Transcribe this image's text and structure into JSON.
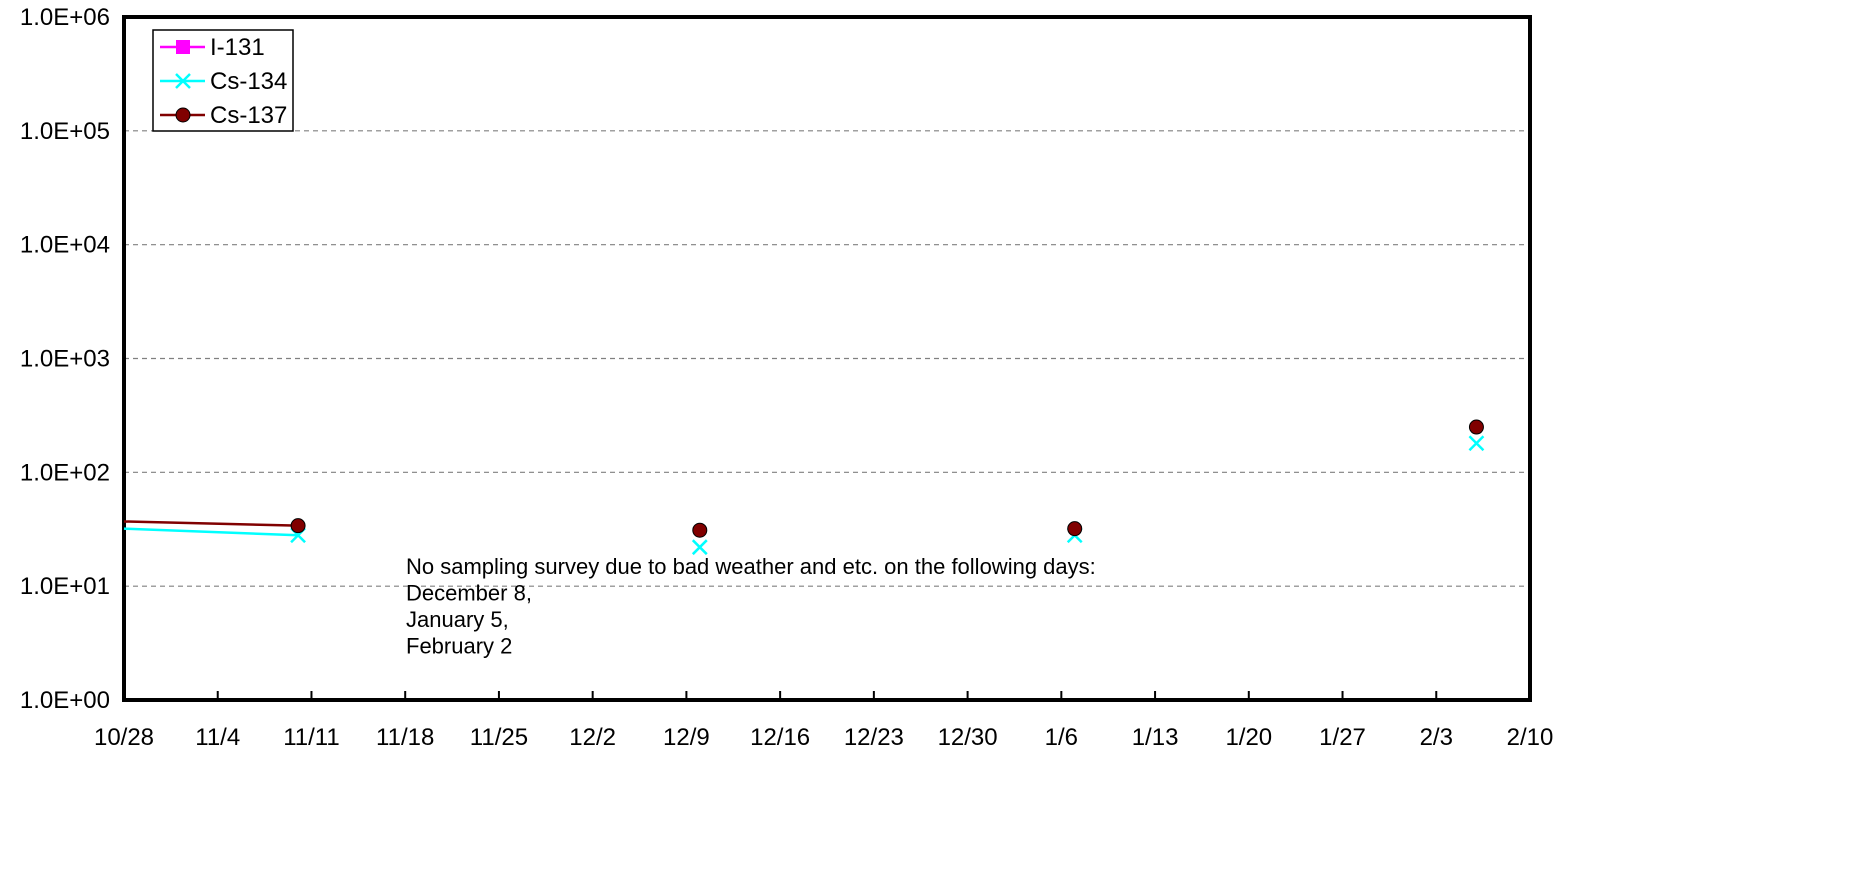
{
  "chart_data": {
    "type": "line",
    "title": "",
    "xlabel": "",
    "ylabel": "",
    "y_scale": "log",
    "ylim": [
      1,
      1000000
    ],
    "xlim": [
      "10/28",
      "2/10"
    ],
    "grid": "horizontal dashed",
    "legend_position": "top-left",
    "x_tick_labels": [
      "10/28",
      "11/4",
      "11/11",
      "11/18",
      "11/25",
      "12/2",
      "12/9",
      "12/16",
      "12/23",
      "12/30",
      "1/6",
      "1/13",
      "1/20",
      "1/27",
      "2/3",
      "2/10"
    ],
    "y_tick_labels": [
      "1.0E+00",
      "1.0E+01",
      "1.0E+02",
      "1.0E+03",
      "1.0E+04",
      "1.0E+05",
      "1.0E+06"
    ],
    "series": [
      {
        "name": "I-131",
        "color": "#ff00ff",
        "marker": "square",
        "points": []
      },
      {
        "name": "Cs-134",
        "color": "#00ffff",
        "marker": "x",
        "points": [
          {
            "x": "10/28",
            "y": 32,
            "marker": false
          },
          {
            "x": "11/10",
            "y": 28,
            "marker": true
          },
          {
            "x": "12/10",
            "y": 22,
            "marker": true
          },
          {
            "x": "1/7",
            "y": 28,
            "marker": true
          },
          {
            "x": "2/6",
            "y": 180,
            "marker": true
          }
        ],
        "connected": [
          [
            0,
            1
          ]
        ]
      },
      {
        "name": "Cs-137",
        "color": "#800000",
        "marker": "circle",
        "points": [
          {
            "x": "10/28",
            "y": 37,
            "marker": false
          },
          {
            "x": "11/10",
            "y": 34,
            "marker": true
          },
          {
            "x": "12/10",
            "y": 31,
            "marker": true
          },
          {
            "x": "1/7",
            "y": 32,
            "marker": true
          },
          {
            "x": "2/6",
            "y": 250,
            "marker": true
          }
        ],
        "connected": [
          [
            0,
            1
          ]
        ]
      }
    ],
    "annotation": [
      "No sampling survey due to bad weather and etc. on the following days:",
      "December 8,",
      "January 5,",
      "February 2"
    ]
  }
}
